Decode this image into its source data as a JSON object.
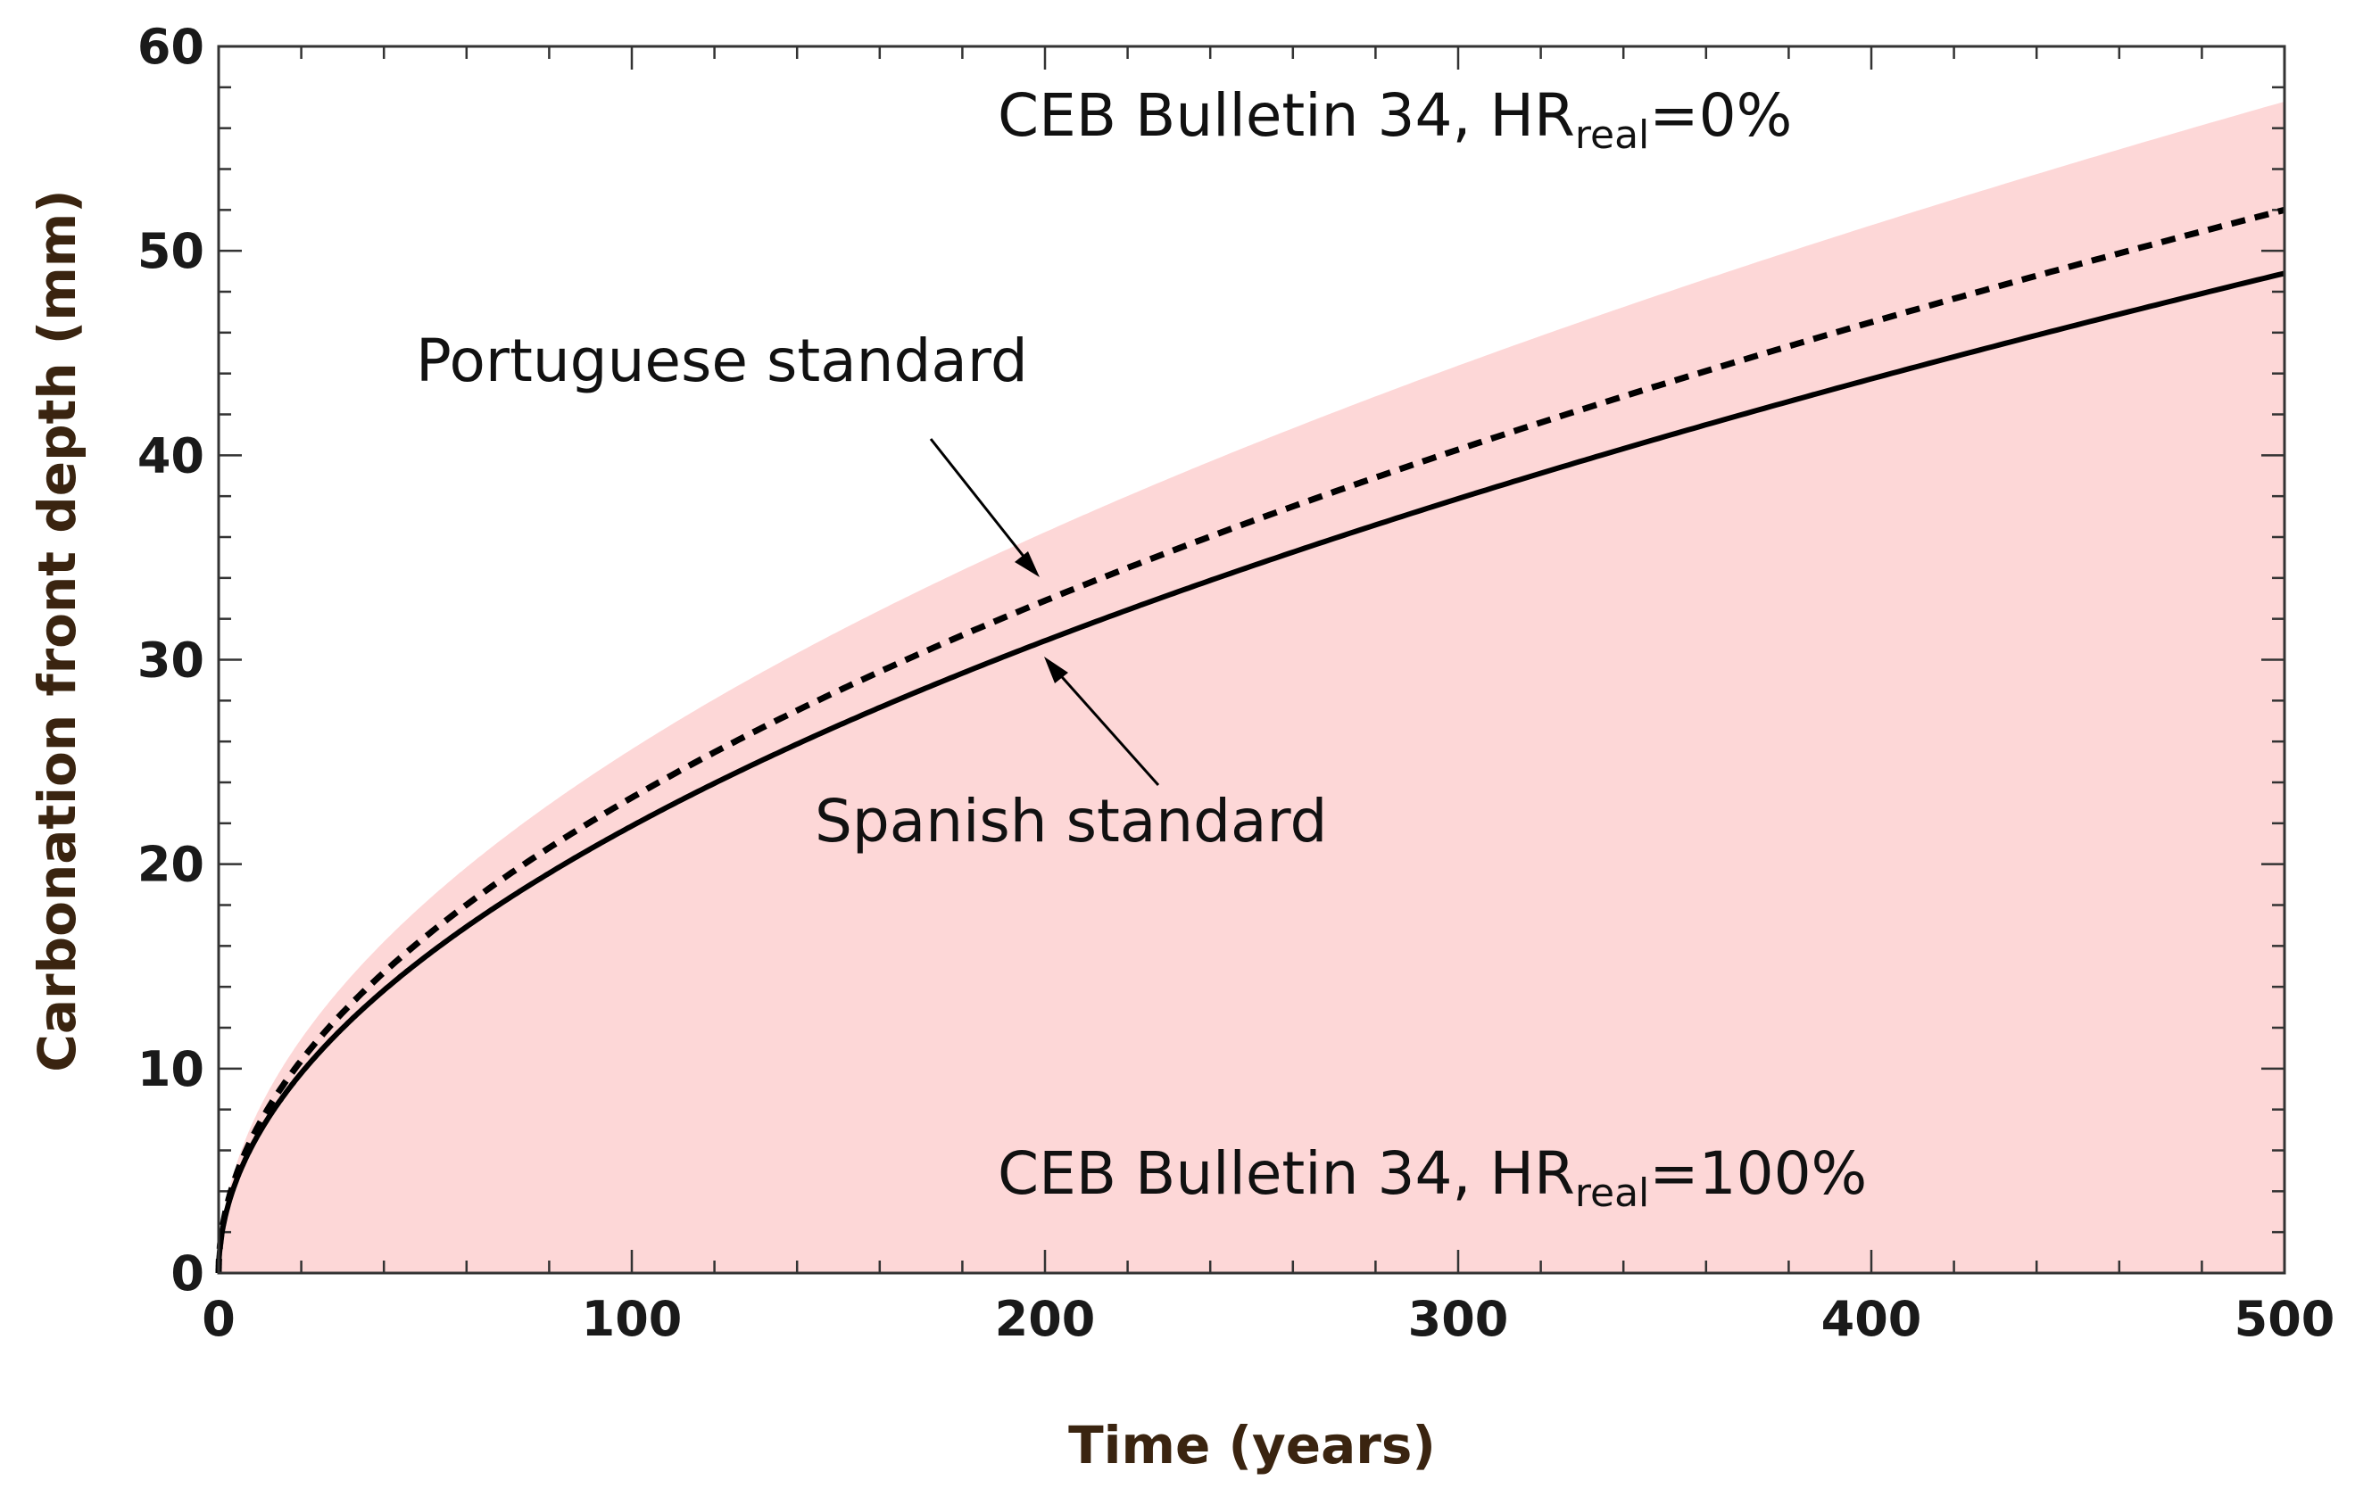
{
  "chart_data": {
    "type": "line",
    "title": "",
    "xlabel": "Time (years)",
    "ylabel": "Carbonation front depth (mm)",
    "xlim": [
      0,
      500
    ],
    "ylim": [
      0,
      60
    ],
    "xticks": [
      0,
      100,
      200,
      300,
      400,
      500
    ],
    "yticks": [
      0,
      10,
      20,
      30,
      40,
      50,
      60
    ],
    "xtick_labels": [
      "0",
      "100",
      "200",
      "300",
      "400",
      "500"
    ],
    "ytick_labels": [
      "0",
      "10",
      "20",
      "30",
      "40",
      "50",
      "60"
    ],
    "band": {
      "name": "CEB Bulletin 34 range",
      "lower_label": {
        "main": "CEB Bulletin 34,  HR",
        "sub": "real",
        "tail": "=100%"
      },
      "upper_label": {
        "main": "CEB Bulletin 34,  HR",
        "sub": "real",
        "tail": "=0%"
      },
      "lower": {
        "x": [
          0,
          500
        ],
        "y": [
          0,
          0
        ]
      },
      "upper": {
        "x": [
          0,
          1,
          5,
          10,
          25,
          50,
          100,
          150,
          200,
          250,
          300,
          350,
          400,
          450,
          500
        ],
        "y": [
          0,
          2.6,
          5.7,
          8.1,
          12.8,
          18.1,
          25.6,
          31.4,
          36.2,
          40.5,
          44.4,
          47.9,
          51.2,
          54.3,
          57.3
        ]
      }
    },
    "series": [
      {
        "name": "Portuguese standard",
        "style": "dashed",
        "x": [
          0,
          1,
          5,
          10,
          25,
          50,
          100,
          150,
          200,
          250,
          300,
          350,
          400,
          450,
          500
        ],
        "y": [
          0,
          2.3,
          5.2,
          7.4,
          11.6,
          16.4,
          23.2,
          28.5,
          32.9,
          36.8,
          40.3,
          43.5,
          46.5,
          49.3,
          52.0
        ]
      },
      {
        "name": "Spanish standard",
        "style": "solid",
        "x": [
          0,
          1,
          5,
          10,
          25,
          50,
          100,
          150,
          200,
          250,
          300,
          350,
          400,
          450,
          500
        ],
        "y": [
          0,
          2.2,
          4.9,
          6.9,
          10.9,
          15.5,
          21.9,
          26.8,
          30.9,
          34.6,
          37.9,
          40.9,
          43.7,
          46.4,
          48.9
        ]
      }
    ],
    "annotations": [
      {
        "text": "Portuguese standard",
        "points_to": {
          "x": 200,
          "y": 34.3
        }
      },
      {
        "text": "Spanish standard",
        "points_to": {
          "x": 200,
          "y": 30.3
        }
      }
    ]
  },
  "colors": {
    "band_fill": "#fdd7d7",
    "line": "#000000",
    "axis": "#333333",
    "axis_label": "#3a2410"
  }
}
